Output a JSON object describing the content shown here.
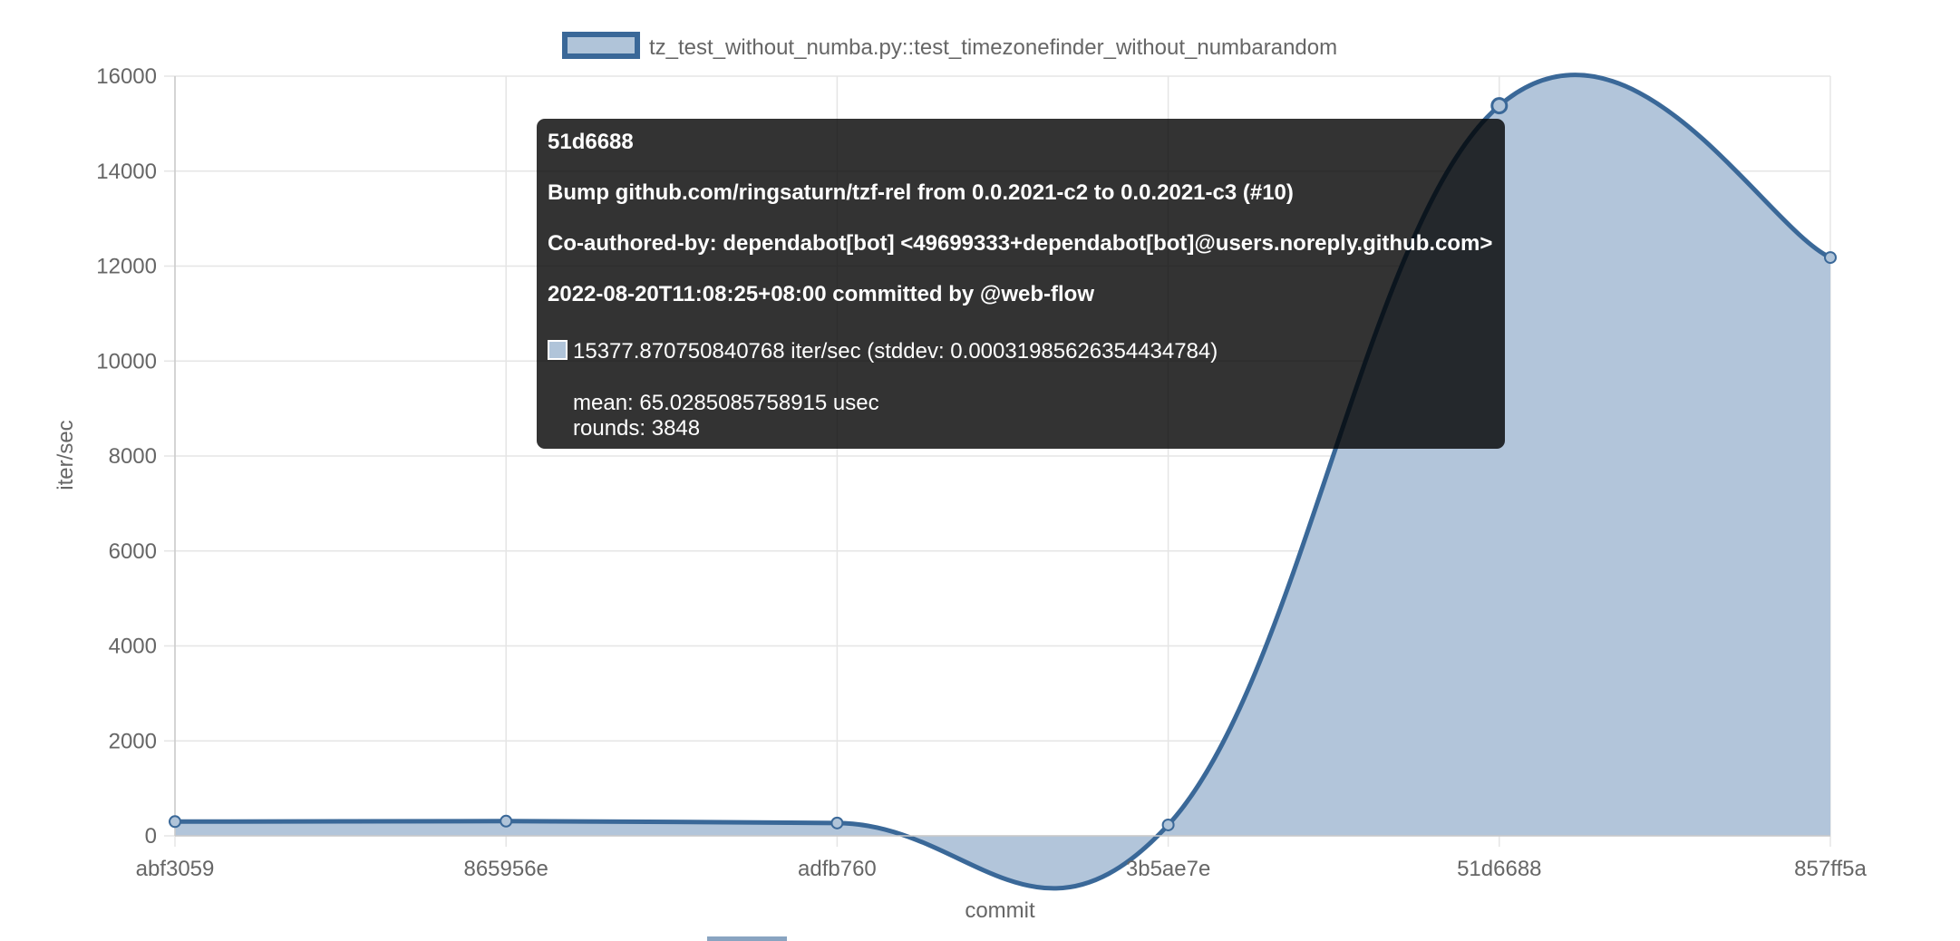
{
  "chart_data": {
    "type": "line",
    "fill": true,
    "smooth": true,
    "title": "",
    "xlabel": "commit",
    "ylabel": "iter/sec",
    "ylim": [
      0,
      16000
    ],
    "yticks": [
      0,
      2000,
      4000,
      6000,
      8000,
      10000,
      12000,
      14000,
      16000
    ],
    "grid": true,
    "legend_position": "top",
    "categories": [
      "abf3059",
      "865956e",
      "adfb760",
      "3b5ae7e",
      "51d6688",
      "857ff5a"
    ],
    "series": [
      {
        "name": "tz_test_without_numba.py::test_timezonefinder_without_numbarandom",
        "values": [
          300,
          310,
          270,
          230,
          15377.870750840768,
          12180
        ],
        "line_color": "#3a6898",
        "fill_color": "#b0c4d9"
      }
    ]
  },
  "tooltip": {
    "commit": "51d6688",
    "message": "Bump github.com/ringsaturn/tzf-rel from 0.0.2021-c2 to 0.0.2021-c3 (#10)",
    "coauthor": "Co-authored-by: dependabot[bot] <49699333+dependabot[bot]@users.noreply.github.com>",
    "committed": "2022-08-20T11:08:25+08:00 committed by @web-flow",
    "value_line": "15377.870750840768 iter/sec (stddev: 0.00031985626354434784)",
    "mean": "mean: 65.0285085758915 usec",
    "rounds": "rounds: 3848"
  }
}
